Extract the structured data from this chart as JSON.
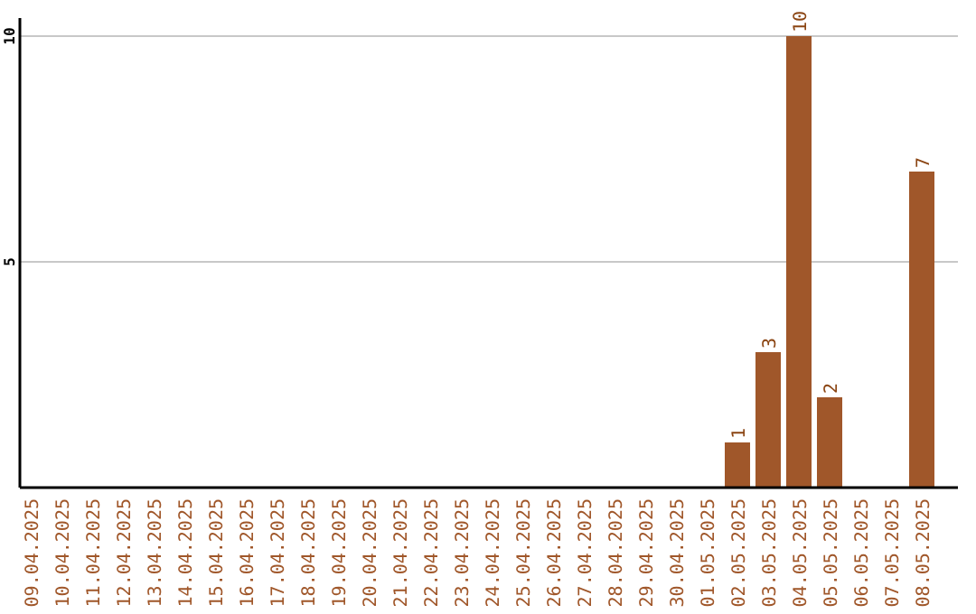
{
  "chart_data": {
    "type": "bar",
    "categories": [
      "09.04.2025",
      "10.04.2025",
      "11.04.2025",
      "12.04.2025",
      "13.04.2025",
      "14.04.2025",
      "15.04.2025",
      "16.04.2025",
      "17.04.2025",
      "18.04.2025",
      "19.04.2025",
      "20.04.2025",
      "21.04.2025",
      "22.04.2025",
      "23.04.2025",
      "24.04.2025",
      "25.04.2025",
      "26.04.2025",
      "27.04.2025",
      "28.04.2025",
      "29.04.2025",
      "30.04.2025",
      "01.05.2025",
      "02.05.2025",
      "03.05.2025",
      "04.05.2025",
      "05.05.2025",
      "06.05.2025",
      "07.05.2025",
      "08.05.2025"
    ],
    "values": [
      0,
      0,
      0,
      0,
      0,
      0,
      0,
      0,
      0,
      0,
      0,
      0,
      0,
      0,
      0,
      0,
      0,
      0,
      0,
      0,
      0,
      0,
      0,
      1,
      3,
      10,
      2,
      0,
      0,
      7
    ],
    "value_labels": [
      null,
      null,
      null,
      null,
      null,
      null,
      null,
      null,
      null,
      null,
      null,
      null,
      null,
      null,
      null,
      null,
      null,
      null,
      null,
      null,
      null,
      null,
      null,
      "1",
      "3",
      "10",
      "2",
      null,
      null,
      "7"
    ],
    "color": "#a0572a",
    "ylim": [
      0,
      10
    ],
    "yticks": [
      5,
      10
    ],
    "grid": "y"
  }
}
